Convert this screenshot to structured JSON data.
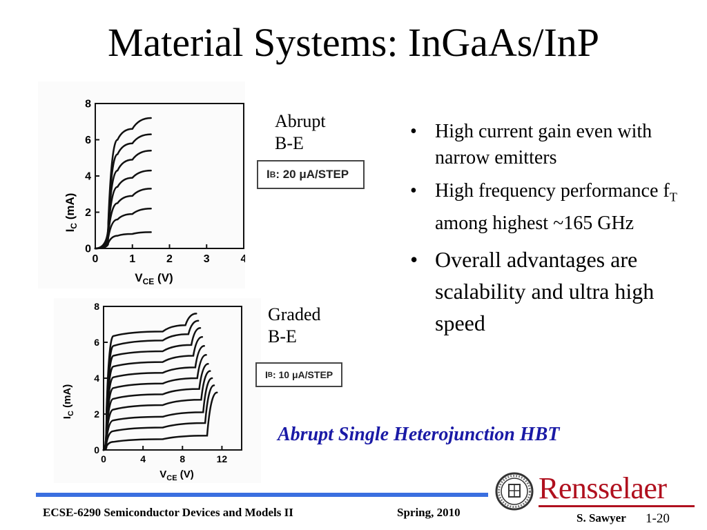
{
  "slide": {
    "title": "Material Systems: InGaAs/InP",
    "caption": "Abrupt Single Heterojunction HBT",
    "bullets": [
      {
        "text": "High current gain even with narrow emitters"
      },
      {
        "text_before": "High frequency performance f",
        "subscript": "T",
        "text_after": " among highest ~165 GHz"
      },
      {
        "text": "Overall advantages are scalability and ultra high speed"
      }
    ],
    "bullet_symbol": "•"
  },
  "graphs": {
    "abrupt": {
      "label_line1": "Abrupt",
      "label_line2": "B-E",
      "ib_prefix": "I",
      "ib_sub": "B",
      "ib_text": ": 20 μA/STEP"
    },
    "graded": {
      "label_line1": "Graded",
      "label_line2": "B-E",
      "ib_prefix": "I",
      "ib_sub": "B",
      "ib_text": ": 10 μA/STEP"
    }
  },
  "chart_data": [
    {
      "type": "line",
      "xlabel": "VCE (V)",
      "ylabel": "IC (mA)",
      "xlim": [
        0,
        4
      ],
      "ylim": [
        0,
        8
      ],
      "xticks": [
        "0",
        "1",
        "2",
        "3",
        "4"
      ],
      "yticks": [
        "0",
        "2",
        "4",
        "6",
        "8"
      ],
      "series": [
        {
          "x": [
            0.35,
            0.6,
            1.0,
            1.5
          ],
          "values": [
            0.3,
            0.7,
            0.8,
            0.9
          ]
        },
        {
          "x": [
            0.35,
            0.6,
            1.0,
            1.5
          ],
          "values": [
            0.6,
            1.6,
            1.9,
            2.2
          ]
        },
        {
          "x": [
            0.35,
            0.6,
            1.0,
            1.5
          ],
          "values": [
            0.8,
            2.5,
            2.9,
            3.3
          ]
        },
        {
          "x": [
            0.35,
            0.6,
            1.0,
            1.5
          ],
          "values": [
            1.0,
            3.4,
            3.9,
            4.3
          ]
        },
        {
          "x": [
            0.35,
            0.6,
            1.0,
            1.5
          ],
          "values": [
            1.2,
            4.3,
            4.9,
            5.4
          ]
        },
        {
          "x": [
            0.35,
            0.6,
            1.0,
            1.5
          ],
          "values": [
            1.3,
            5.2,
            5.8,
            6.3
          ]
        },
        {
          "x": [
            0.35,
            0.6,
            1.0,
            1.5
          ],
          "values": [
            1.4,
            6.0,
            6.6,
            7.2
          ]
        }
      ]
    },
    {
      "type": "line",
      "xlabel": "VCE (V)",
      "ylabel": "IC (mA)",
      "xlim": [
        0,
        14
      ],
      "ylim": [
        0,
        8
      ],
      "xticks": [
        "0",
        "4",
        "8",
        "12"
      ],
      "yticks": [
        "0",
        "2",
        "4",
        "6",
        "8"
      ],
      "series": [
        {
          "x": [
            0.3,
            1.0,
            6.0,
            10.5,
            11.5
          ],
          "values": [
            0.2,
            0.45,
            0.6,
            0.8,
            3.2
          ]
        },
        {
          "x": [
            0.3,
            1.0,
            6.0,
            10.3,
            11.2
          ],
          "values": [
            0.4,
            1.05,
            1.25,
            1.5,
            3.6
          ]
        },
        {
          "x": [
            0.3,
            1.0,
            6.0,
            10.1,
            11.0
          ],
          "values": [
            0.6,
            1.65,
            1.85,
            2.1,
            4.0
          ]
        },
        {
          "x": [
            0.3,
            1.0,
            6.0,
            9.9,
            10.8
          ],
          "values": [
            0.8,
            2.25,
            2.5,
            2.8,
            4.4
          ]
        },
        {
          "x": [
            0.3,
            1.0,
            6.0,
            9.7,
            10.6
          ],
          "values": [
            1.0,
            2.85,
            3.1,
            3.4,
            4.8
          ]
        },
        {
          "x": [
            0.3,
            1.0,
            6.0,
            9.5,
            10.4
          ],
          "values": [
            1.2,
            3.45,
            3.7,
            4.0,
            5.3
          ]
        },
        {
          "x": [
            0.3,
            1.0,
            6.0,
            9.3,
            10.2
          ],
          "values": [
            1.4,
            4.05,
            4.3,
            4.6,
            5.8
          ]
        },
        {
          "x": [
            0.3,
            1.0,
            6.0,
            9.1,
            10.0
          ],
          "values": [
            1.6,
            4.65,
            4.9,
            5.25,
            6.3
          ]
        },
        {
          "x": [
            0.3,
            1.0,
            6.0,
            8.9,
            9.8
          ],
          "values": [
            1.8,
            5.25,
            5.5,
            5.85,
            6.8
          ]
        },
        {
          "x": [
            0.3,
            1.0,
            6.0,
            8.6,
            9.6
          ],
          "values": [
            2.0,
            5.8,
            6.1,
            6.45,
            7.2
          ]
        },
        {
          "x": [
            0.3,
            1.0,
            6.0,
            8.3,
            9.4
          ],
          "values": [
            2.2,
            6.35,
            6.6,
            6.95,
            7.6
          ]
        }
      ]
    }
  ],
  "footer": {
    "course": "ECSE-6290 Semiconductor Devices and Models II",
    "term": "Spring, 2010",
    "author": "S. Sawyer",
    "page": "1-20",
    "logo_text": "Rensselaer"
  },
  "colors": {
    "caption": "#1a1aa6",
    "rule": "#3a6fe0",
    "logo": "#b0101e"
  }
}
